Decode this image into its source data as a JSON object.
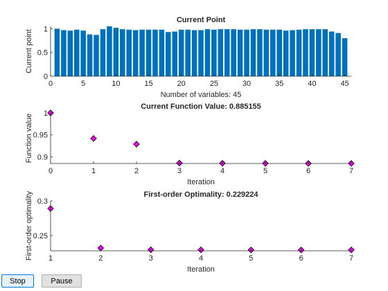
{
  "buttons": {
    "stop_label": "Stop",
    "pause_label": "Pause"
  },
  "colors": {
    "bar": "#0072bd",
    "marker": "#ff00ff",
    "marker_edge": "#000000",
    "axis": "#262626"
  },
  "chart_data": [
    {
      "type": "bar",
      "title": "Current Point",
      "xlabel": "Number of variables: 45",
      "ylabel": "Current point",
      "xlim": [
        0,
        46
      ],
      "ylim": [
        0,
        1.05
      ],
      "xticks": [
        0,
        5,
        10,
        15,
        20,
        25,
        30,
        35,
        40,
        45
      ],
      "yticks": [
        0,
        0.5,
        1
      ],
      "ytick_labels": [
        "0",
        "0.5",
        "1"
      ],
      "values": [
        1.0,
        0.97,
        0.96,
        0.98,
        0.96,
        0.88,
        0.87,
        0.99,
        1.05,
        1.02,
        0.99,
        0.98,
        0.97,
        0.98,
        0.98,
        0.98,
        0.98,
        0.93,
        0.94,
        0.98,
        0.98,
        0.97,
        0.97,
        0.99,
        0.98,
        0.99,
        0.99,
        0.99,
        0.98,
        0.98,
        0.99,
        0.99,
        0.98,
        0.98,
        0.98,
        0.96,
        0.97,
        0.98,
        0.99,
        0.99,
        0.99,
        0.99,
        0.94,
        0.91,
        0.8
      ]
    },
    {
      "type": "scatter",
      "title": "Current Function Value: 0.885155",
      "xlabel": "Iteration",
      "ylabel": "Function value",
      "xlim": [
        0,
        7
      ],
      "ylim": [
        0.885,
        1.0
      ],
      "xticks": [
        0,
        1,
        2,
        3,
        4,
        5,
        6,
        7
      ],
      "yticks": [
        0.9,
        0.95,
        1
      ],
      "ytick_labels": [
        "0.9",
        "0.95",
        "1"
      ],
      "x": [
        0,
        1,
        2,
        3,
        4,
        5,
        6,
        7
      ],
      "y": [
        1.0,
        0.942,
        0.929,
        0.886,
        0.8855,
        0.8853,
        0.8852,
        0.885155
      ]
    },
    {
      "type": "scatter",
      "title": "First-order Optimality: 0.229224",
      "xlabel": "Iteration",
      "ylabel": "First-order optimality",
      "xlim": [
        1,
        7
      ],
      "ylim": [
        0.228,
        0.3
      ],
      "xticks": [
        1,
        2,
        3,
        4,
        5,
        6,
        7
      ],
      "yticks": [
        0.25,
        0.3
      ],
      "ytick_labels": [
        "0.25",
        "0.3"
      ],
      "x": [
        1,
        2,
        3,
        4,
        5,
        6,
        7
      ],
      "y": [
        0.289,
        0.232,
        0.2295,
        0.2294,
        0.2293,
        0.2292,
        0.229224
      ]
    }
  ]
}
